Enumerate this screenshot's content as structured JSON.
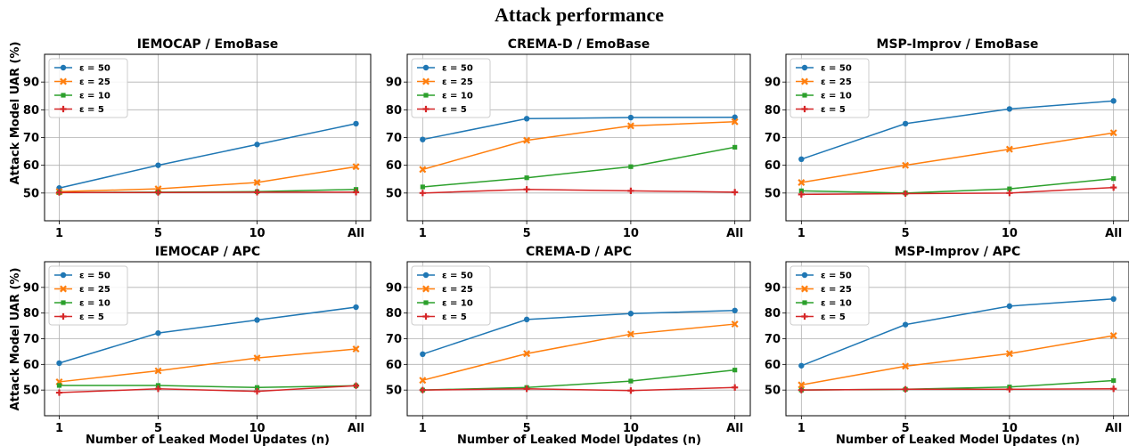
{
  "figure": {
    "title": "Attack performance",
    "ylabel": "Attack Model UAR (%)",
    "xlabel": "Number of Leaked Model Updates (n)"
  },
  "legend_labels": [
    "ε = 50",
    "ε = 25",
    "ε = 10",
    "ε = 5"
  ],
  "colors": [
    "#1f77b4",
    "#ff7f0e",
    "#2ca02c",
    "#d62728"
  ],
  "markers": [
    "circle",
    "x",
    "square",
    "plus"
  ],
  "chart_data": [
    {
      "type": "line",
      "title": "IEMOCAP / EmoBase",
      "categories": [
        "1",
        "5",
        "10",
        "All"
      ],
      "yticks": [
        50,
        60,
        70,
        80,
        90
      ],
      "ylim": [
        40,
        100
      ],
      "grid": true,
      "legend": "top-left",
      "series": [
        {
          "name": "ε = 50",
          "values": [
            51.8,
            60.0,
            67.5,
            75.0
          ]
        },
        {
          "name": "ε = 25",
          "values": [
            50.5,
            51.5,
            53.8,
            59.5
          ]
        },
        {
          "name": "ε = 10",
          "values": [
            50.2,
            50.3,
            50.5,
            51.3
          ]
        },
        {
          "name": "ε = 5",
          "values": [
            50.2,
            50.2,
            50.3,
            50.3
          ]
        }
      ]
    },
    {
      "type": "line",
      "title": "CREMA-D / EmoBase",
      "categories": [
        "1",
        "5",
        "10",
        "All"
      ],
      "yticks": [
        50,
        60,
        70,
        80,
        90
      ],
      "ylim": [
        40,
        100
      ],
      "grid": true,
      "legend": "top-left",
      "series": [
        {
          "name": "ε = 50",
          "values": [
            69.3,
            76.8,
            77.2,
            77.3
          ]
        },
        {
          "name": "ε = 25",
          "values": [
            58.5,
            69.0,
            74.2,
            75.7
          ]
        },
        {
          "name": "ε = 10",
          "values": [
            52.2,
            55.5,
            59.5,
            66.5
          ]
        },
        {
          "name": "ε = 5",
          "values": [
            50.0,
            51.3,
            50.8,
            50.3
          ]
        }
      ]
    },
    {
      "type": "line",
      "title": "MSP-Improv / EmoBase",
      "categories": [
        "1",
        "5",
        "10",
        "All"
      ],
      "yticks": [
        50,
        60,
        70,
        80,
        90
      ],
      "ylim": [
        40,
        100
      ],
      "grid": true,
      "legend": "top-left",
      "series": [
        {
          "name": "ε = 50",
          "values": [
            62.2,
            75.0,
            80.3,
            83.2
          ]
        },
        {
          "name": "ε = 25",
          "values": [
            53.8,
            60.0,
            65.8,
            71.7
          ]
        },
        {
          "name": "ε = 10",
          "values": [
            50.8,
            50.0,
            51.5,
            55.2
          ]
        },
        {
          "name": "ε = 5",
          "values": [
            49.5,
            49.8,
            50.0,
            52.0
          ]
        }
      ]
    },
    {
      "type": "line",
      "title": "IEMOCAP / APC",
      "categories": [
        "1",
        "5",
        "10",
        "All"
      ],
      "yticks": [
        50,
        60,
        70,
        80,
        90
      ],
      "ylim": [
        40,
        100
      ],
      "grid": true,
      "legend": "top-left",
      "series": [
        {
          "name": "ε = 50",
          "values": [
            60.5,
            72.2,
            77.3,
            82.3
          ]
        },
        {
          "name": "ε = 25",
          "values": [
            53.2,
            57.5,
            62.5,
            66.0
          ]
        },
        {
          "name": "ε = 10",
          "values": [
            51.8,
            51.8,
            51.0,
            51.7
          ]
        },
        {
          "name": "ε = 5",
          "values": [
            49.0,
            50.5,
            49.5,
            51.7
          ]
        }
      ]
    },
    {
      "type": "line",
      "title": "CREMA-D / APC",
      "categories": [
        "1",
        "5",
        "10",
        "All"
      ],
      "yticks": [
        50,
        60,
        70,
        80,
        90
      ],
      "ylim": [
        40,
        100
      ],
      "grid": true,
      "legend": "top-left",
      "series": [
        {
          "name": "ε = 50",
          "values": [
            64.0,
            77.5,
            79.8,
            81.0
          ]
        },
        {
          "name": "ε = 25",
          "values": [
            53.8,
            64.2,
            71.8,
            75.7
          ]
        },
        {
          "name": "ε = 10",
          "values": [
            50.0,
            51.0,
            53.5,
            57.8
          ]
        },
        {
          "name": "ε = 5",
          "values": [
            50.0,
            50.5,
            49.8,
            51.0
          ]
        }
      ]
    },
    {
      "type": "line",
      "title": "MSP-Improv / APC",
      "categories": [
        "1",
        "5",
        "10",
        "All"
      ],
      "yticks": [
        50,
        60,
        70,
        80,
        90
      ],
      "ylim": [
        40,
        100
      ],
      "grid": true,
      "legend": "top-left",
      "series": [
        {
          "name": "ε = 50",
          "values": [
            59.5,
            75.5,
            82.7,
            85.5
          ]
        },
        {
          "name": "ε = 25",
          "values": [
            52.0,
            59.3,
            64.2,
            71.2
          ]
        },
        {
          "name": "ε = 10",
          "values": [
            50.0,
            50.3,
            51.2,
            53.7
          ]
        },
        {
          "name": "ε = 5",
          "values": [
            50.0,
            50.3,
            50.3,
            50.5
          ]
        }
      ]
    }
  ]
}
